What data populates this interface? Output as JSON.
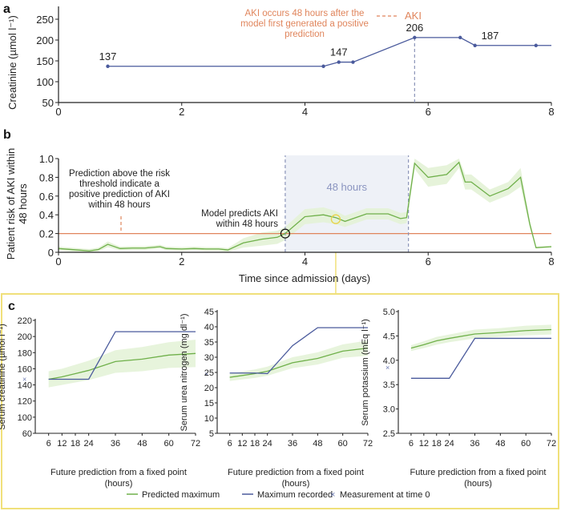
{
  "colors": {
    "blue": "#4a5a9c",
    "green": "#6fb04a",
    "green_band": "#e3f2d6",
    "orange": "#e0855c",
    "dash_gray": "#8a94b8",
    "shade": "#eef1f7",
    "yellow": "#f0e07a",
    "black": "#222222"
  },
  "chart_data": [
    {
      "panel": "a",
      "type": "line",
      "ylabel": "Creatinine (µmol l⁻¹)",
      "xlim": [
        0,
        8
      ],
      "ylim": [
        50,
        250
      ],
      "xticks": [
        "0",
        "2",
        "4",
        "6",
        "8"
      ],
      "yticks": [
        "50",
        "100",
        "150",
        "200",
        "250"
      ],
      "series": [
        {
          "name": "Creatinine",
          "x": [
            0.8,
            4.3,
            4.55,
            4.78,
            5.78,
            6.52,
            6.76,
            7.75,
            8.0
          ],
          "y": [
            137,
            137,
            147,
            147,
            206,
            206,
            187,
            187,
            187
          ],
          "markers": [
            true,
            true,
            true,
            true,
            true,
            true,
            true,
            true,
            false
          ]
        }
      ],
      "data_labels": [
        {
          "x": 0.8,
          "y": 137,
          "text": "137"
        },
        {
          "x": 4.55,
          "y": 147,
          "text": "147"
        },
        {
          "x": 5.78,
          "y": 206,
          "text": "206"
        },
        {
          "x": 6.76,
          "y": 187,
          "text": "187"
        }
      ],
      "aki_line_x": 5.78,
      "annotation": [
        "AKI occurs 48 hours after the",
        "model first generated a positive",
        "prediction"
      ],
      "legend": {
        "label": "AKI",
        "placement": "top-right"
      }
    },
    {
      "panel": "b",
      "type": "line",
      "ylabel": [
        "Patient risk of AKI within",
        "48 hours"
      ],
      "xlabel": "Time since admission (days)",
      "xlim": [
        0,
        8
      ],
      "ylim": [
        0,
        1.0
      ],
      "xticks": [
        "0",
        "2",
        "4",
        "6",
        "8"
      ],
      "yticks": [
        "0",
        "0.2",
        "0.4",
        "0.6",
        "0.8",
        "1.0"
      ],
      "threshold": 0.2,
      "shaded_region": [
        3.68,
        5.68
      ],
      "shaded_label": "48 hours",
      "prediction_point": {
        "x": 3.68,
        "y": 0.2
      },
      "selected_point": {
        "x": 4.5,
        "y": 0.37
      },
      "series": [
        {
          "name": "Risk",
          "x": [
            0,
            0.3,
            0.5,
            0.65,
            0.8,
            1.0,
            1.2,
            1.4,
            1.65,
            1.75,
            2.0,
            2.2,
            2.4,
            2.6,
            2.75,
            3.0,
            3.3,
            3.55,
            3.68,
            4.0,
            4.3,
            4.5,
            4.65,
            5.0,
            5.35,
            5.55,
            5.65,
            5.78,
            6.0,
            6.3,
            6.5,
            6.6,
            6.7,
            7.0,
            7.3,
            7.5,
            7.65,
            7.75,
            8.0
          ],
          "y": [
            0.04,
            0.025,
            0.015,
            0.03,
            0.085,
            0.04,
            0.045,
            0.045,
            0.06,
            0.04,
            0.035,
            0.04,
            0.035,
            0.035,
            0.025,
            0.1,
            0.14,
            0.16,
            0.2,
            0.38,
            0.4,
            0.37,
            0.33,
            0.41,
            0.41,
            0.36,
            0.37,
            0.95,
            0.8,
            0.83,
            0.96,
            0.75,
            0.75,
            0.6,
            0.68,
            0.8,
            0.3,
            0.05,
            0.06
          ],
          "band": [
            0.02,
            0.02,
            0.02,
            0.02,
            0.03,
            0.02,
            0.02,
            0.02,
            0.02,
            0.02,
            0.02,
            0.02,
            0.02,
            0.02,
            0.02,
            0.05,
            0.07,
            0.07,
            0.07,
            0.08,
            0.08,
            0.07,
            0.06,
            0.06,
            0.06,
            0.06,
            0.06,
            0.06,
            0.1,
            0.1,
            0.06,
            0.08,
            0.08,
            0.07,
            0.07,
            0.1,
            0.04,
            0.01,
            0.01
          ]
        }
      ],
      "annotations": [
        [
          "Prediction above the risk",
          "threshold indicate a",
          "positive prediction of AKI",
          "within 48 hours"
        ],
        [
          "Model predicts AKI",
          "within 48 hours"
        ]
      ]
    },
    {
      "panel": "c1",
      "type": "line",
      "ylabel": "Serum creatinine (µmol l⁻¹)",
      "xlabel": [
        "Future prediction from a fixed point",
        "(hours)"
      ],
      "xlim": [
        0,
        72
      ],
      "ylim": [
        60,
        220
      ],
      "ybreak": true,
      "xticks": [
        6,
        12,
        18,
        24,
        36,
        48,
        60,
        72
      ],
      "yticks": [
        60,
        100,
        120,
        140,
        160,
        180,
        200,
        220
      ],
      "measurement_at_0": 147,
      "series": [
        {
          "name": "Predicted maximum",
          "x": [
            6,
            12,
            18,
            24,
            36,
            48,
            60,
            72
          ],
          "y": [
            147,
            150,
            154,
            158,
            169,
            172,
            177,
            179
          ],
          "band": [
            10,
            10,
            11,
            12,
            14,
            15,
            16,
            17
          ]
        },
        {
          "name": "Maximum recorded",
          "x": [
            6,
            12,
            18,
            24,
            36,
            48,
            60,
            72
          ],
          "y": [
            147,
            147,
            147,
            147,
            206,
            206,
            206,
            206
          ]
        }
      ]
    },
    {
      "panel": "c2",
      "type": "line",
      "ylabel": "Serum urea nitrogen (mg dl⁻¹)",
      "xlabel": [
        "Future prediction from a fixed point",
        "(hours)"
      ],
      "xlim": [
        0,
        72
      ],
      "ylim": [
        5,
        45
      ],
      "xticks": [
        6,
        12,
        18,
        24,
        36,
        48,
        60,
        72
      ],
      "yticks": [
        5,
        10,
        15,
        20,
        25,
        30,
        35,
        40,
        45
      ],
      "measurement_at_0": 24.5,
      "series": [
        {
          "name": "Predicted maximum",
          "x": [
            6,
            12,
            18,
            24,
            36,
            48,
            60,
            72
          ],
          "y": [
            23.4,
            24,
            24.6,
            25.4,
            28.2,
            29.6,
            32,
            33
          ],
          "band": [
            1.2,
            1.3,
            1.4,
            1.5,
            1.8,
            2,
            2.2,
            2.5
          ]
        },
        {
          "name": "Maximum recorded",
          "x": [
            6,
            12,
            18,
            24,
            36,
            48,
            60,
            72
          ],
          "y": [
            24.8,
            24.8,
            24.8,
            24.6,
            33.8,
            39.7,
            39.7,
            39.7
          ]
        }
      ]
    },
    {
      "panel": "c3",
      "type": "line",
      "ylabel": "Serum potassium (mEq l⁻¹)",
      "xlabel": [
        "Future prediction from a fixed point",
        "(hours)"
      ],
      "xlim": [
        0,
        72
      ],
      "ylim": [
        2.5,
        5.0
      ],
      "xticks": [
        6,
        12,
        18,
        24,
        36,
        48,
        60,
        72
      ],
      "yticks": [
        2.5,
        3.0,
        3.5,
        4.0,
        4.5,
        5.0
      ],
      "measurement_at_0": 3.85,
      "series": [
        {
          "name": "Predicted maximum",
          "x": [
            6,
            12,
            18,
            24,
            36,
            48,
            60,
            72
          ],
          "y": [
            4.25,
            4.32,
            4.4,
            4.45,
            4.54,
            4.57,
            4.61,
            4.63
          ],
          "band": [
            0.06,
            0.07,
            0.08,
            0.08,
            0.09,
            0.09,
            0.1,
            0.1
          ]
        },
        {
          "name": "Maximum recorded",
          "x": [
            6,
            12,
            18,
            24,
            36,
            48,
            60,
            72
          ],
          "y": [
            3.63,
            3.63,
            3.63,
            3.63,
            4.45,
            4.45,
            4.45,
            4.45
          ]
        }
      ]
    }
  ],
  "legend": {
    "items": [
      {
        "symbol": "line-green",
        "label": "Predicted maximum"
      },
      {
        "symbol": "line-blue",
        "label": "Maximum recorded"
      },
      {
        "symbol": "cross",
        "label": "Measurement at time 0"
      }
    ]
  }
}
